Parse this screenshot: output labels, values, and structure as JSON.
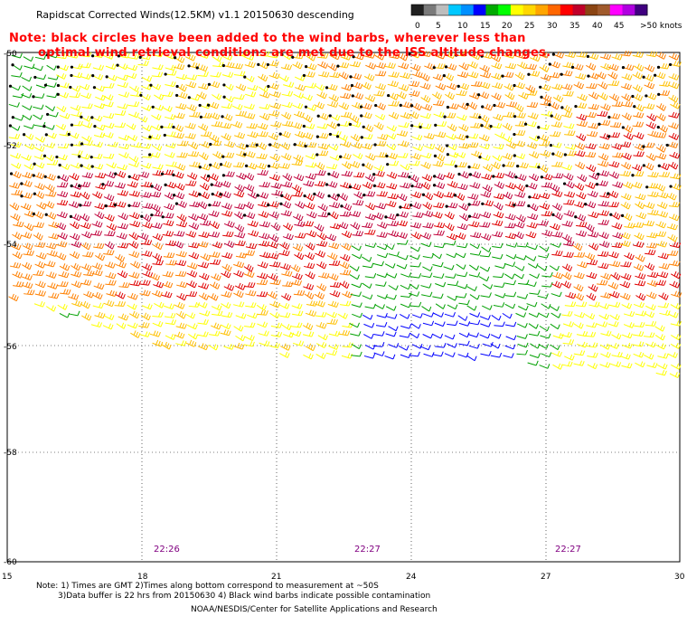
{
  "title": "Rapidscat Corrected Winds(12.5KM) v1.1 20150630 descending",
  "note_line1": "Note: black circles have been added to the wind barbs, wherever less than",
  "note_line2": "optimal wind retrieval conditions are met due to the ISS altitude changes.",
  "colorbar": {
    "labels": [
      "0",
      "5",
      "10",
      "15",
      "20",
      "25",
      "30",
      "35",
      "40",
      "45",
      ">50 knots"
    ],
    "colors": [
      "#202020",
      "#7a7a7a",
      "#bdbdbd",
      "#00c8ff",
      "#0090ff",
      "#0000ff",
      "#00aa00",
      "#00ff00",
      "#ffff00",
      "#ffd700",
      "#ffa500",
      "#ff6600",
      "#ff0000",
      "#c0002a",
      "#8b4513",
      "#a05a2c",
      "#ff00ff",
      "#b000e0",
      "#400080"
    ]
  },
  "x_ticks": [
    "15",
    "18",
    "21",
    "24",
    "27",
    "30"
  ],
  "y_ticks": [
    "-50",
    "-52",
    "-54",
    "-56",
    "-58",
    "-60"
  ],
  "times": [
    "22:26",
    "22:27",
    "22:27"
  ],
  "footer": {
    "line1": "Note: 1) Times are GMT 2)Times along bottom correspond to measurement at ~50S",
    "line2": "3)Data buffer is 22 hrs from 20150630 4) Black wind barbs indicate possible contamination",
    "line3": "NOAA/NESDIS/Center for Satellite Applications and Research"
  },
  "barb_colors": {
    "calm_green": "#00a000",
    "blue": "#0000ff",
    "yellow": "#ffff00",
    "gold": "#ffc000",
    "orange": "#ff8000",
    "red": "#e00000",
    "crimson": "#c0003a",
    "contaminated": "#000000"
  }
}
